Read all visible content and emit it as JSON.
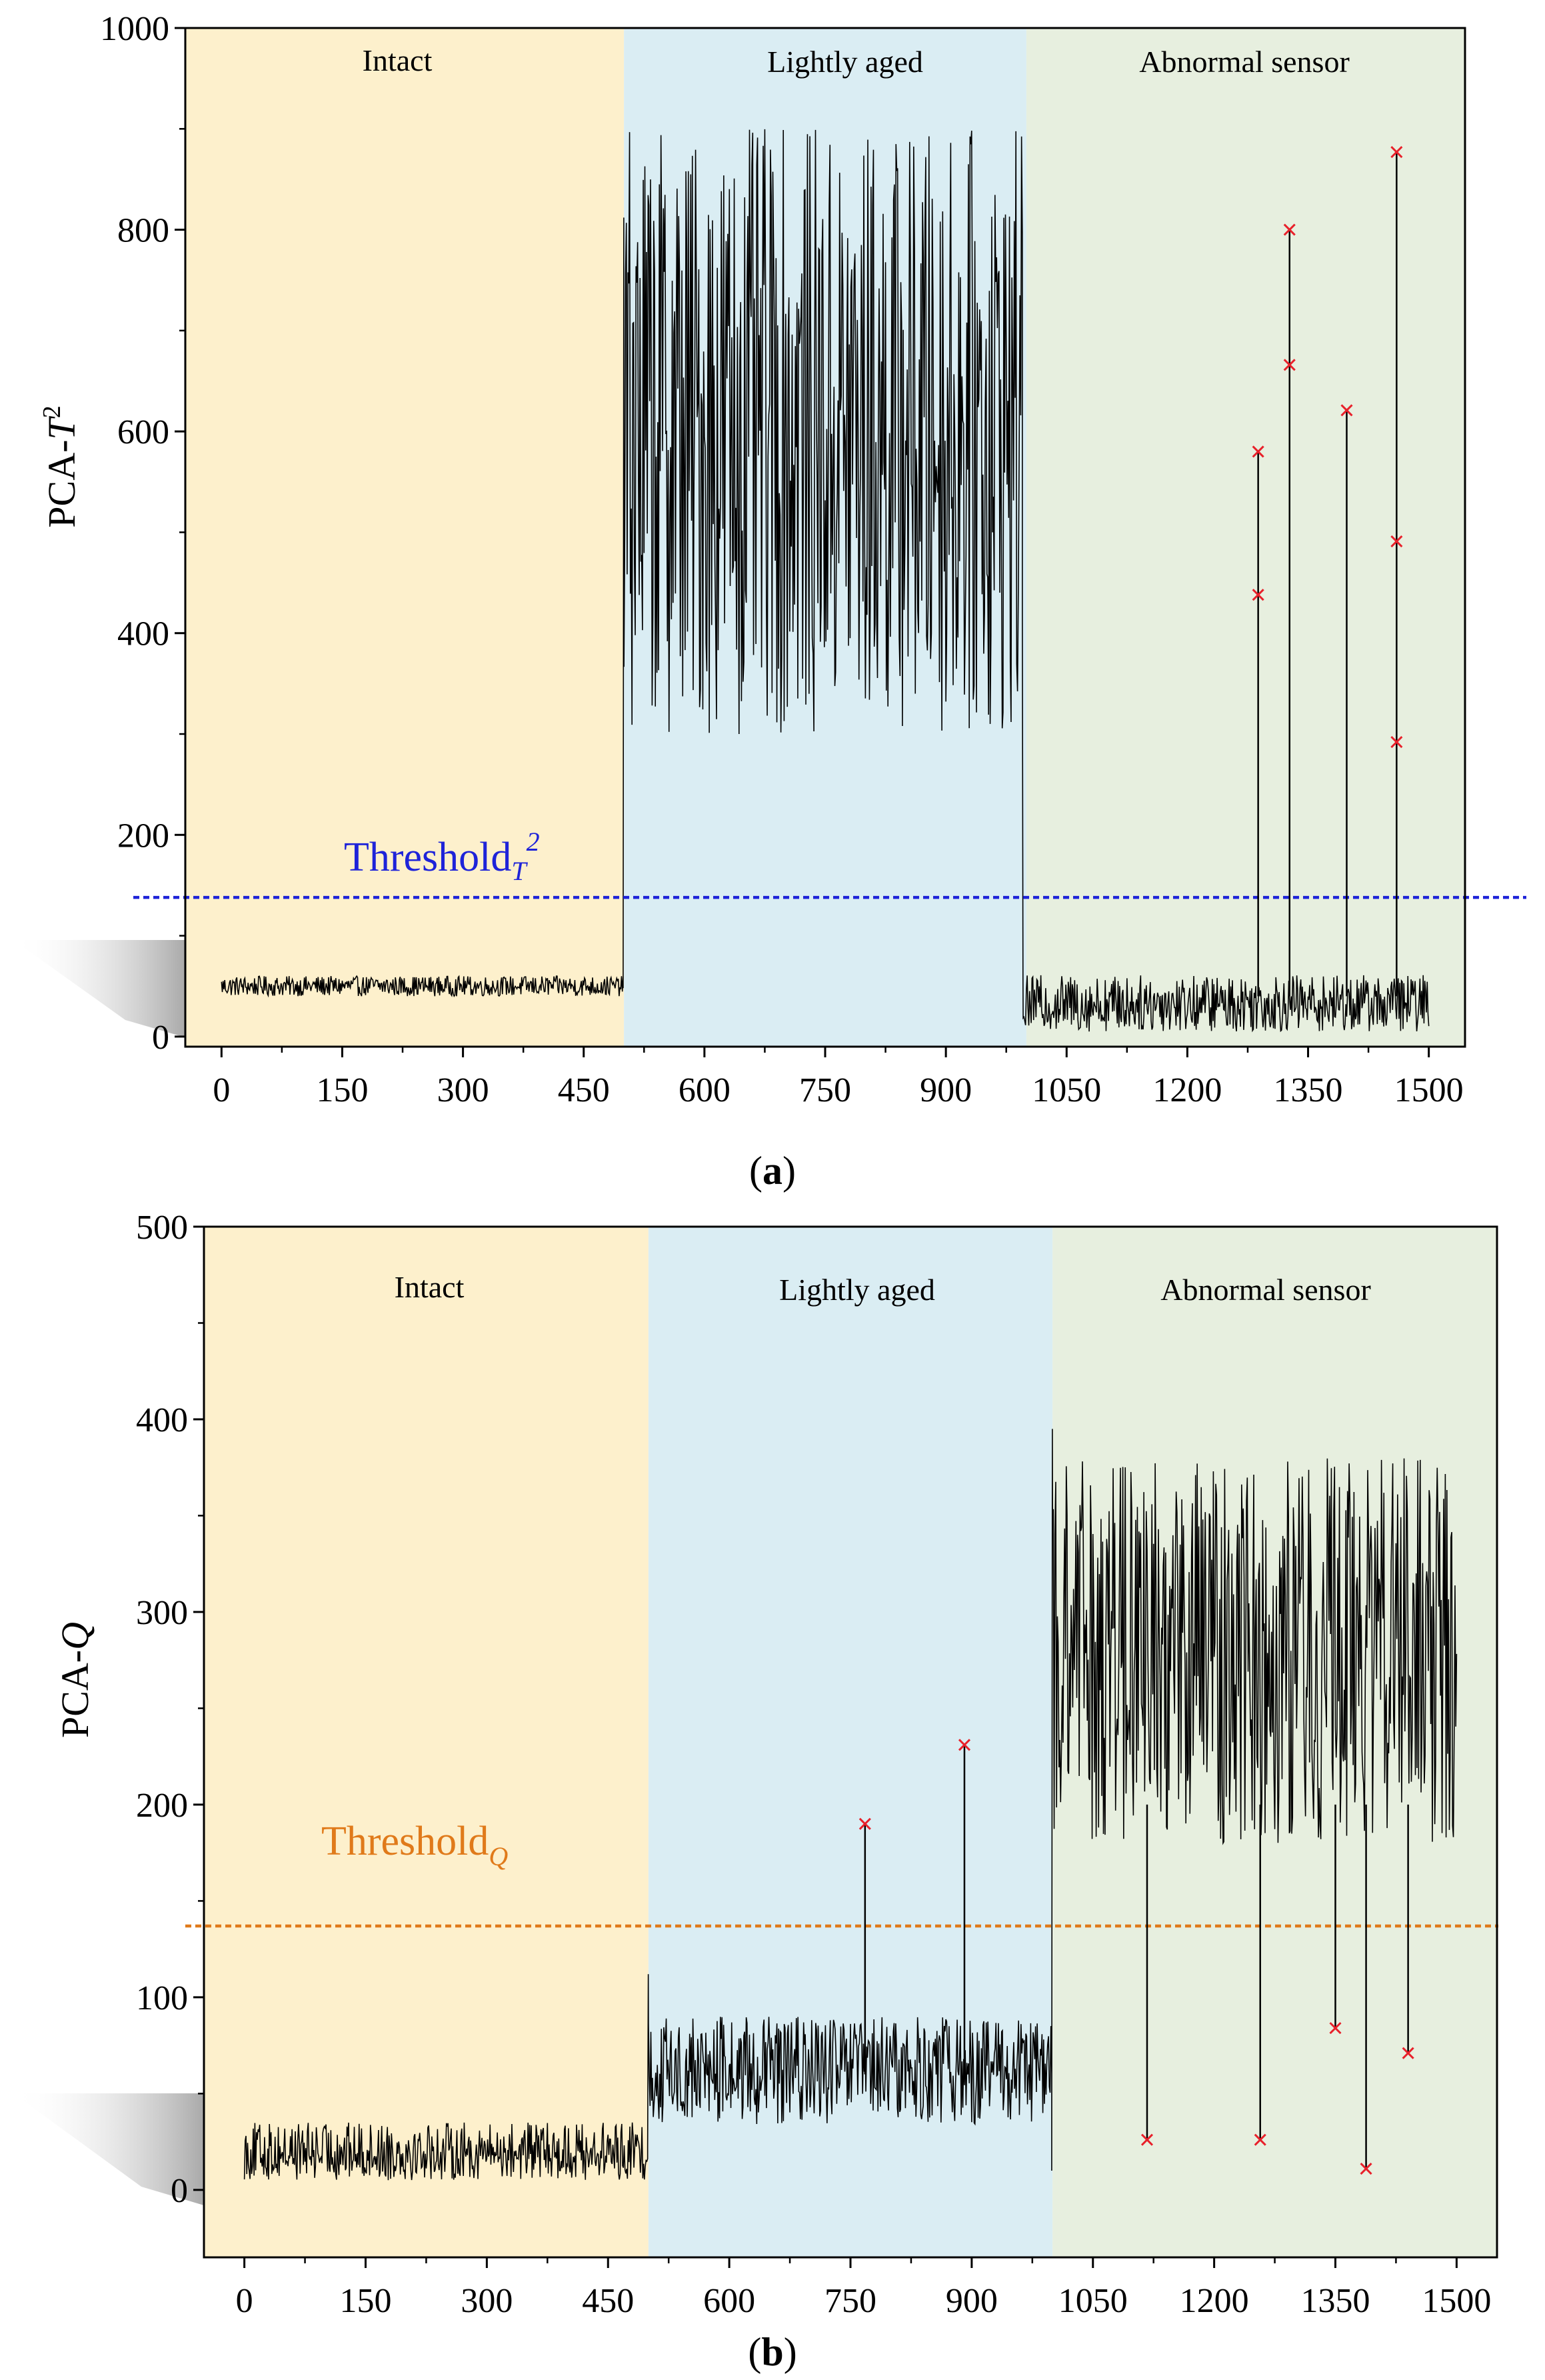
{
  "colors": {
    "intact": "#fdf0cc",
    "lightly_aged": "#daedf3",
    "abnormal": "#e7efdf",
    "signal": "#000000",
    "marker": "#e8202a",
    "threshold_t2": "#1e23d9",
    "threshold_q": "#e07a1a"
  },
  "chart_data": [
    {
      "type": "line",
      "caption_open": "(",
      "caption_letter": "a",
      "caption_close": ")",
      "ylabel_prefix": "PCA-",
      "ylabel_italic": "T",
      "ylabel_sup": "2",
      "xlim": [
        -45,
        1545
      ],
      "ylim": [
        -10,
        1000
      ],
      "x_ticks": [
        0,
        150,
        300,
        450,
        600,
        750,
        900,
        1050,
        1200,
        1350,
        1500
      ],
      "y_ticks": [
        0,
        200,
        400,
        600,
        800,
        1000
      ],
      "regions": [
        {
          "label": "Intact",
          "x0": -45,
          "x1": 500,
          "color_key": "intact"
        },
        {
          "label": "Lightly aged",
          "x0": 500,
          "x1": 1000,
          "color_key": "lightly_aged"
        },
        {
          "label": "Abnormal sensor",
          "x0": 1000,
          "x1": 1545,
          "color_key": "abnormal"
        }
      ],
      "threshold": {
        "value": 138,
        "text": "Threshold",
        "sub": "T",
        "sup": "2",
        "color_key": "threshold_t2"
      },
      "series": {
        "name": "PCA-T2",
        "segments": [
          {
            "x0": 0,
            "x1": 499,
            "mean": 50,
            "amp": 10,
            "min": 38,
            "max": 62
          },
          {
            "x0": 500,
            "x1": 995,
            "mean": 600,
            "amp": 300,
            "min": 285,
            "max": 915
          },
          {
            "x0": 996,
            "x1": 1500,
            "mean": 33,
            "amp": 28,
            "min": 2,
            "max": 62
          }
        ],
        "transitions": [
          {
            "x": 499,
            "from": 48,
            "to": 812
          },
          {
            "x": 995,
            "from": 420,
            "to": 55
          }
        ],
        "anomalies": [
          {
            "x": 1288,
            "values": [
              438,
              580
            ]
          },
          {
            "x": 1327,
            "values": [
              666,
              800
            ]
          },
          {
            "x": 1398,
            "values": [
              621
            ]
          },
          {
            "x": 1460,
            "values": [
              292,
              491,
              877
            ]
          }
        ]
      }
    },
    {
      "type": "line",
      "caption_open": "(",
      "caption_letter": "b",
      "caption_close": ")",
      "ylabel_prefix": "PCA-",
      "ylabel_italic": "Q",
      "ylabel_sup": "",
      "xlim": [
        -50,
        1550
      ],
      "ylim": [
        -35,
        500
      ],
      "x_ticks": [
        0,
        150,
        300,
        450,
        600,
        750,
        900,
        1050,
        1200,
        1350,
        1500
      ],
      "y_ticks": [
        0,
        100,
        200,
        300,
        400,
        500
      ],
      "regions": [
        {
          "label": "Intact",
          "x0": -50,
          "x1": 500,
          "color_key": "intact"
        },
        {
          "label": "Lightly aged",
          "x0": 500,
          "x1": 1000,
          "color_key": "lightly_aged"
        },
        {
          "label": "Abnormal sensor",
          "x0": 1000,
          "x1": 1550,
          "color_key": "abnormal"
        }
      ],
      "threshold": {
        "value": 137,
        "text": "Threshold",
        "sub": "Q",
        "sup": "",
        "color_key": "threshold_q"
      },
      "series": {
        "name": "PCA-Q",
        "segments": [
          {
            "x0": 0,
            "x1": 499,
            "mean": 20,
            "amp": 15,
            "min": 2,
            "max": 40
          },
          {
            "x0": 500,
            "x1": 999,
            "mean": 62,
            "amp": 28,
            "min": 5,
            "max": 118
          },
          {
            "x0": 1000,
            "x1": 1500,
            "mean": 280,
            "amp": 100,
            "min": 165,
            "max": 418
          }
        ],
        "transitions": [
          {
            "x": 499,
            "from": 22,
            "to": 112
          },
          {
            "x": 999,
            "from": 10,
            "to": 395
          }
        ],
        "anomalies": [
          {
            "x": 768,
            "values": [
              190
            ]
          },
          {
            "x": 891,
            "values": [
              231
            ]
          },
          {
            "x": 1117,
            "values": [
              26
            ]
          },
          {
            "x": 1257,
            "values": [
              26
            ]
          },
          {
            "x": 1350,
            "values": [
              84
            ]
          },
          {
            "x": 1388,
            "values": [
              11
            ]
          },
          {
            "x": 1440,
            "values": [
              71
            ]
          }
        ]
      }
    }
  ]
}
